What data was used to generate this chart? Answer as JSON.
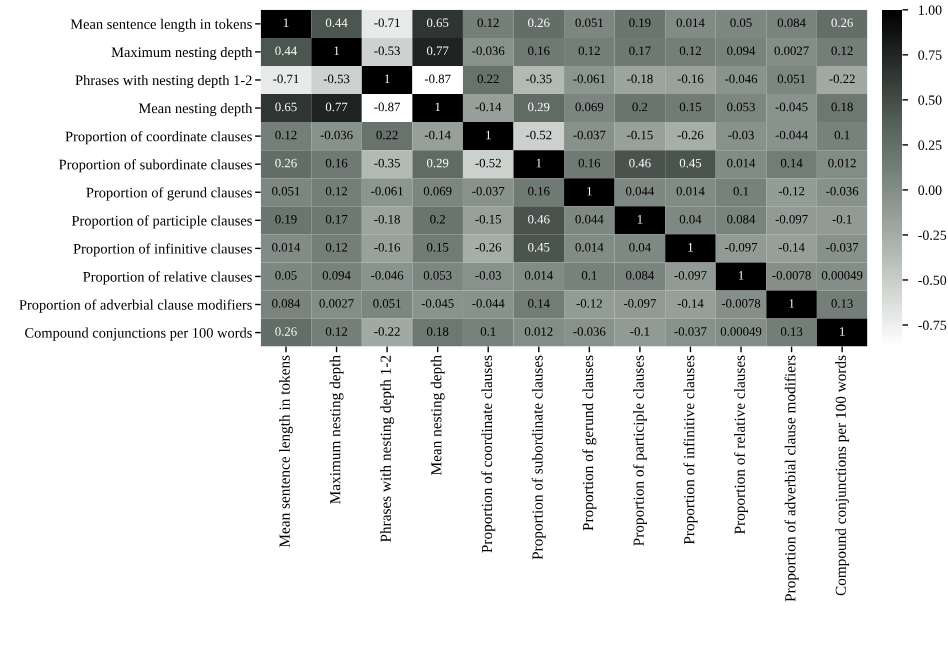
{
  "chart_data": {
    "type": "heatmap",
    "categories": [
      "Mean sentence length in tokens",
      "Maximum nesting depth",
      "Phrases with nesting depth 1-2",
      "Mean nesting depth",
      "Proportion of coordinate clauses",
      "Proportion of subordinate clauses",
      "Proportion of gerund clauses",
      "Proportion of participle clauses",
      "Proportion of infinitive clauses",
      "Proportion of relative clauses",
      "Proportion of adverbial clause modifiers",
      "Compound conjunctions per 100 words"
    ],
    "y_categories": [
      "Mean sentence length in tokens",
      "Maximum nesting depth",
      "Phrases with nesting depth 1-2",
      "Mean nesting depth",
      "Proportion of coordinate clauses",
      "Proportion of subordinate clauses",
      "Proportion of gerund clauses",
      "Proportion of participle clauses",
      "Proportion of infinitive clauses",
      "Proportion of relative clauses",
      "Proportion of adverbial clause modifiers",
      "Compound conjunctions per 100 words"
    ],
    "cells": [
      [
        1,
        0.44,
        -0.71,
        0.65,
        0.12,
        0.26,
        0.051,
        0.19,
        0.014,
        0.05,
        0.084,
        0.26
      ],
      [
        0.44,
        1,
        -0.53,
        0.77,
        -0.036,
        0.16,
        0.12,
        0.17,
        0.12,
        0.094,
        0.0027,
        0.12
      ],
      [
        -0.71,
        -0.53,
        1,
        -0.87,
        0.22,
        -0.35,
        -0.061,
        -0.18,
        -0.16,
        -0.046,
        0.051,
        -0.22
      ],
      [
        0.65,
        0.77,
        -0.87,
        1,
        -0.14,
        0.29,
        0.069,
        0.2,
        0.15,
        0.053,
        -0.045,
        0.18
      ],
      [
        0.12,
        -0.036,
        0.22,
        -0.14,
        1,
        -0.52,
        -0.037,
        -0.15,
        -0.26,
        -0.03,
        -0.044,
        0.1
      ],
      [
        0.26,
        0.16,
        -0.35,
        0.29,
        -0.52,
        1,
        0.16,
        0.46,
        0.45,
        0.014,
        0.14,
        0.012
      ],
      [
        0.051,
        0.12,
        -0.061,
        0.069,
        -0.037,
        0.16,
        1,
        0.044,
        0.014,
        0.1,
        -0.12,
        -0.036
      ],
      [
        0.19,
        0.17,
        -0.18,
        0.2,
        -0.15,
        0.46,
        0.044,
        1,
        0.04,
        0.084,
        -0.097,
        -0.1
      ],
      [
        0.014,
        0.12,
        -0.16,
        0.15,
        -0.26,
        0.45,
        0.014,
        0.04,
        1,
        -0.097,
        -0.14,
        -0.037
      ],
      [
        0.05,
        0.094,
        -0.046,
        0.053,
        -0.03,
        0.014,
        0.1,
        0.084,
        -0.097,
        1,
        -0.0078,
        0.00049
      ],
      [
        0.084,
        0.0027,
        0.051,
        -0.045,
        -0.044,
        0.14,
        -0.12,
        -0.097,
        -0.14,
        -0.0078,
        1,
        0.13
      ],
      [
        0.26,
        0.12,
        -0.22,
        0.18,
        0.1,
        0.012,
        -0.036,
        -0.1,
        -0.037,
        0.00049,
        0.13,
        1
      ]
    ],
    "clim": [
      -0.87,
      1
    ],
    "cticks": [
      {
        "value": -0.75,
        "label": "-0.75"
      },
      {
        "value": -0.5,
        "label": "-0.50"
      },
      {
        "value": -0.25,
        "label": "-0.25"
      },
      {
        "value": 0,
        "label": "0.00"
      },
      {
        "value": 0.25,
        "label": "0.25"
      },
      {
        "value": 0.5,
        "label": "0.50"
      },
      {
        "value": 0.75,
        "label": "0.75"
      },
      {
        "value": 1,
        "label": "1.00"
      }
    ],
    "data_labels": true
  }
}
